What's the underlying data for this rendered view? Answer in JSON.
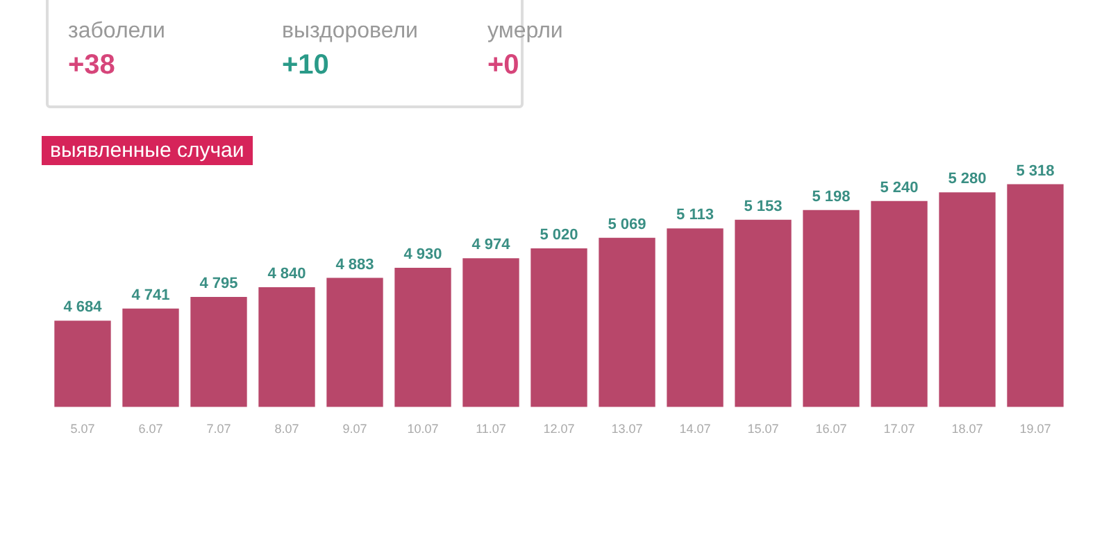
{
  "chart_data": [
    {
      "type": "other",
      "annotations": [
        "заболели",
        "+38",
        "выздоровели",
        "+10",
        "умерли",
        "+0"
      ]
    },
    {
      "type": "bar",
      "title": "выявленные случаи",
      "categories": [
        "5.07",
        "6.07",
        "7.07",
        "8.07",
        "9.07",
        "10.07",
        "11.07",
        "12.07",
        "13.07",
        "14.07",
        "15.07",
        "16.07",
        "17.07",
        "18.07",
        "19.07"
      ],
      "values": [
        4684,
        4741,
        4795,
        4840,
        4883,
        4930,
        4974,
        5020,
        5069,
        5113,
        5153,
        5198,
        5240,
        5280,
        5318
      ],
      "value_labels": [
        "4 684",
        "4 741",
        "4 795",
        "4 840",
        "4 883",
        "4 930",
        "4 974",
        "5 020",
        "5 069",
        "5 113",
        "5 153",
        "5 198",
        "5 240",
        "5 280",
        "5 318"
      ],
      "color": "#b8476a",
      "tick_labels": "x",
      "grid": false,
      "legend": false
    }
  ]
}
